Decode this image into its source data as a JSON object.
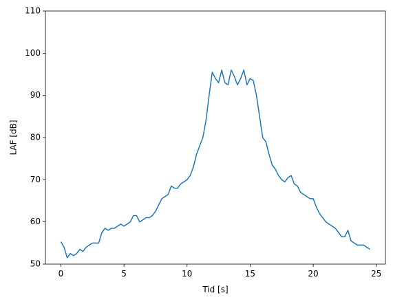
{
  "chart_data": {
    "type": "line",
    "xlabel": "Tid [s]",
    "ylabel": "LAF [dB]",
    "x": [
      0,
      0.25,
      0.5,
      0.75,
      1,
      1.25,
      1.5,
      1.75,
      2,
      2.25,
      2.5,
      2.75,
      3,
      3.25,
      3.5,
      3.75,
      4,
      4.25,
      4.5,
      4.75,
      5,
      5.25,
      5.5,
      5.75,
      6,
      6.25,
      6.5,
      6.75,
      7,
      7.25,
      7.5,
      7.75,
      8,
      8.25,
      8.5,
      8.75,
      9,
      9.25,
      9.5,
      9.75,
      10,
      10.25,
      10.5,
      10.75,
      11,
      11.25,
      11.5,
      11.75,
      12,
      12.25,
      12.5,
      12.75,
      13,
      13.25,
      13.5,
      13.75,
      14,
      14.25,
      14.5,
      14.75,
      15,
      15.25,
      15.5,
      15.75,
      16,
      16.25,
      16.5,
      16.75,
      17,
      17.25,
      17.5,
      17.75,
      18,
      18.25,
      18.5,
      18.75,
      19,
      19.25,
      19.5,
      19.75,
      20,
      20.25,
      20.5,
      20.75,
      21,
      21.25,
      21.5,
      21.75,
      22,
      22.25,
      22.5,
      22.75,
      23,
      23.25,
      23.5,
      23.75,
      24,
      24.25,
      24.5
    ],
    "series": [
      {
        "color": "#1f77b4",
        "values": [
          55.3,
          54,
          51.5,
          52.5,
          52,
          52.5,
          53.5,
          53,
          54,
          54.5,
          55,
          55,
          55,
          57.5,
          58.5,
          58,
          58.5,
          58.5,
          59,
          59.5,
          59,
          59.5,
          60,
          61.5,
          61.5,
          60,
          60.5,
          61,
          61,
          61.5,
          62.5,
          64,
          65.5,
          66,
          66.5,
          68.5,
          68,
          68,
          69,
          69.5,
          70,
          71,
          73,
          76,
          78,
          80,
          84,
          90,
          95.5,
          94,
          93,
          96,
          93,
          92.5,
          96,
          94.5,
          92.5,
          94,
          96,
          92.5,
          94,
          93.5,
          90,
          85,
          80,
          79,
          76,
          73.5,
          72.5,
          71,
          70,
          69.5,
          70.5,
          71,
          69,
          68.5,
          67,
          66.5,
          66,
          65.5,
          65.5,
          63.5,
          62,
          61,
          60,
          59.5,
          59,
          58.5,
          57.5,
          56.5,
          56.5,
          58,
          55.5,
          55,
          54.5,
          54.5,
          54.5,
          54,
          53.5
        ]
      }
    ],
    "xlim": [
      -1.225,
      25.725
    ],
    "xticks": [
      0,
      5,
      10,
      15,
      20,
      25
    ],
    "ylim": [
      50,
      110
    ],
    "yticks": [
      50,
      60,
      70,
      80,
      90,
      100,
      110
    ]
  }
}
